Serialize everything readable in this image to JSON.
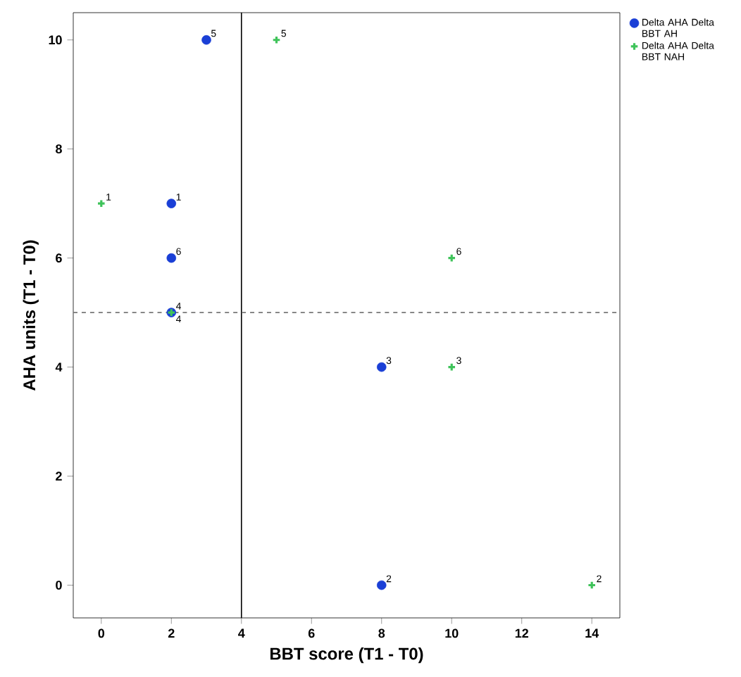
{
  "chart_data": {
    "type": "scatter",
    "xlabel": "BBT score  (T1 - T0)",
    "ylabel": "AHA units (T1 - T0)",
    "xlim": [
      -0.8,
      14.8
    ],
    "ylim": [
      -0.6,
      10.5
    ],
    "xticks": [
      0,
      2,
      4,
      6,
      8,
      10,
      12,
      14
    ],
    "yticks": [
      0,
      2,
      4,
      6,
      8,
      10
    ],
    "legend": "top right",
    "grid": false,
    "series": [
      {
        "name": "Delta AHA Delta BBT AH",
        "color": "#1a3fd6",
        "marker": "circle",
        "x": [
          2,
          8,
          8,
          2,
          3,
          2
        ],
        "values": [
          7,
          0,
          4,
          5,
          10,
          6
        ]
      },
      {
        "name": "Delta AHA Delta BBT NAH",
        "color": "#3fc35a",
        "marker": "cross",
        "x": [
          0,
          14,
          10,
          2,
          5,
          10
        ],
        "values": [
          7,
          0,
          4,
          5,
          10,
          6
        ]
      }
    ],
    "ref_lines": [
      {
        "axis": "x",
        "value": 4,
        "line_style": "solid",
        "color": "#000000"
      },
      {
        "axis": "y",
        "value": 5,
        "line_style": "dashed",
        "color": "#777777"
      }
    ],
    "annotations": [
      {
        "text": "1",
        "x": 2,
        "y": 7
      },
      {
        "text": "2",
        "x": 8,
        "y": 0
      },
      {
        "text": "3",
        "x": 8,
        "y": 4
      },
      {
        "text": "4",
        "x": 2,
        "y": 5
      },
      {
        "text": "5",
        "x": 3,
        "y": 10
      },
      {
        "text": "6",
        "x": 2,
        "y": 6
      },
      {
        "text": "1",
        "x": 0,
        "y": 7
      },
      {
        "text": "2",
        "x": 14,
        "y": 0
      },
      {
        "text": "3",
        "x": 10,
        "y": 4
      },
      {
        "text": "4",
        "x": 2,
        "y": 5
      },
      {
        "text": "5",
        "x": 5,
        "y": 10
      },
      {
        "text": "6",
        "x": 10,
        "y": 6
      }
    ]
  }
}
